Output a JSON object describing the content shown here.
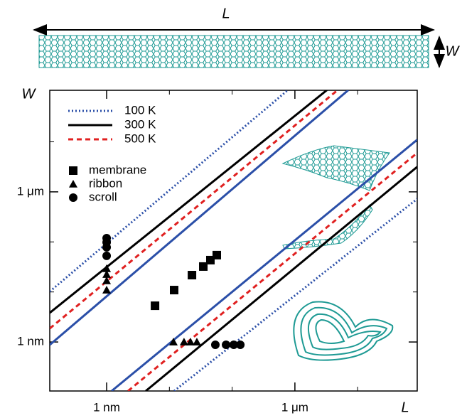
{
  "header": {
    "length_label": "L",
    "width_label": "W"
  },
  "chart_data": {
    "type": "scatter",
    "x_label": "L",
    "y_label": "W",
    "log_x": true,
    "log_y": true,
    "xlim": [
      0.124,
      89000
    ],
    "ylim": [
      0.105,
      107000
    ],
    "xticks": [
      {
        "value": 1,
        "label": "1 nm"
      },
      {
        "value": 1000,
        "label": "1 μm"
      }
    ],
    "yticks": [
      {
        "value": 1,
        "label": "1 nm"
      },
      {
        "value": 1000,
        "label": "1 μm"
      }
    ],
    "minor_xticks": [
      10,
      100,
      10000
    ],
    "minor_yticks": [
      10,
      100,
      10000
    ],
    "lines": [
      {
        "name": "100 K",
        "color": "#2b4fa8",
        "dash": "dotted",
        "segments": [
          {
            "x": [
              0.124,
              773
            ],
            "y": [
              10.2,
              108000
            ]
          },
          {
            "x": [
              11.9,
              89000
            ],
            "y": [
              0.105,
              725
            ]
          }
        ]
      },
      {
        "name": "300 K",
        "color": "#000000",
        "dash": "solid",
        "segments": [
          {
            "x": [
              0.124,
              3240
            ],
            "y": [
              3.83,
              108000
            ]
          },
          {
            "x": [
              4.2,
              89000
            ],
            "y": [
              0.105,
              3160
            ]
          }
        ]
      },
      {
        "name": "500 K",
        "color": "#e02020",
        "dash": "dashed",
        "segments": [
          {
            "x": [
              0.124,
              4800
            ],
            "y": [
              1.86,
              108000
            ]
          },
          {
            "x": [
              2.19,
              89000
            ],
            "y": [
              0.105,
              6000
            ]
          }
        ]
      },
      {
        "color": "#2b4fa8",
        "dash": "solid",
        "segments": [
          {
            "x": [
              0.124,
              7100
            ],
            "y": [
              0.877,
              108000
            ]
          },
          {
            "x": [
              1.2,
              89000
            ],
            "y": [
              0.105,
              11000
            ]
          }
        ]
      }
    ],
    "series": [
      {
        "name": "membrane",
        "marker": "square",
        "color": "#000000",
        "x": [
          5.9,
          11.9,
          22.9,
          34.7,
          45,
          56.9
        ],
        "y": [
          5.3,
          10.9,
          21.7,
          32.2,
          43.2,
          54.4
        ]
      },
      {
        "name": "ribbon",
        "marker": "triangle",
        "color": "#000000",
        "x": [
          1,
          1,
          1,
          1,
          11.6,
          17.1,
          21.7,
          27.4
        ],
        "y": [
          29.2,
          22.4,
          16.7,
          10.9,
          1,
          1,
          1,
          1
        ]
      },
      {
        "name": "scroll",
        "marker": "circle",
        "color": "#000000",
        "x": [
          1,
          1,
          1,
          1,
          54,
          80,
          106,
          135
        ],
        "y": [
          119,
          98,
          78,
          52.6,
          0.88,
          0.88,
          0.88,
          0.88
        ]
      }
    ]
  }
}
